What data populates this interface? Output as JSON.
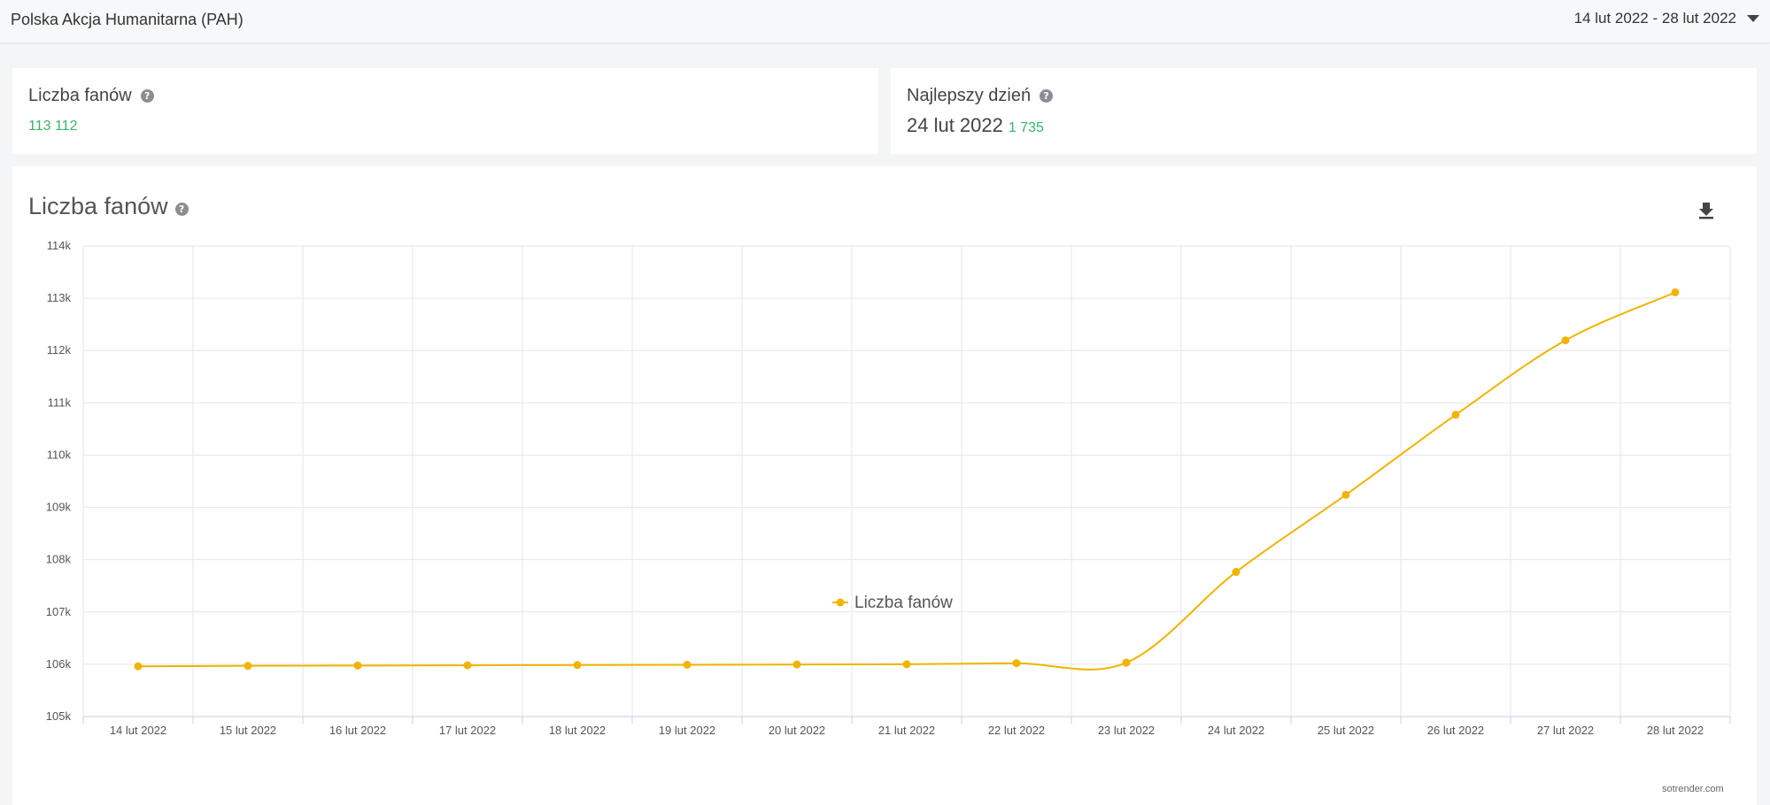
{
  "header": {
    "page_name": "Polska Akcja Humanitarna (PAH)",
    "date_range": "14 lut 2022 - 28 lut 2022"
  },
  "stats": {
    "fans_title": "Liczba fanów",
    "fans_value": "113 112",
    "best_day_title": "Najlepszy dzień",
    "best_day_date": "24 lut 2022",
    "best_day_value": "1 735"
  },
  "icons": {
    "help": "help-icon",
    "download": "download-icon",
    "caret": "chevron-down-icon"
  },
  "colors": {
    "series": "#f0b400",
    "positive": "#3bb36a",
    "grid": "#e6e6ec"
  },
  "watermark": "sotrender.com",
  "chart_data": {
    "type": "line",
    "title": "Liczba fanów",
    "categories": [
      "14 lut 2022",
      "15 lut 2022",
      "16 lut 2022",
      "17 lut 2022",
      "18 lut 2022",
      "19 lut 2022",
      "20 lut 2022",
      "21 lut 2022",
      "22 lut 2022",
      "23 lut 2022",
      "24 lut 2022",
      "25 lut 2022",
      "26 lut 2022",
      "27 lut 2022",
      "28 lut 2022"
    ],
    "series": [
      {
        "name": "Liczba fanów",
        "values": [
          105960,
          105970,
          105975,
          105980,
          105985,
          105990,
          105995,
          106000,
          106020,
          106030,
          107765,
          109240,
          110770,
          112195,
          113112
        ]
      }
    ],
    "ylim": [
      105000,
      114000
    ],
    "yticks": [
      "105k",
      "106k",
      "107k",
      "108k",
      "109k",
      "110k",
      "111k",
      "112k",
      "113k",
      "114k"
    ],
    "grid": true,
    "legend": "bottom-center"
  }
}
